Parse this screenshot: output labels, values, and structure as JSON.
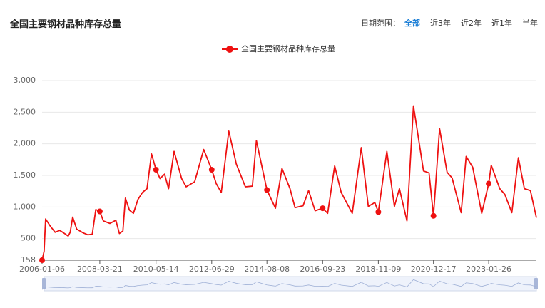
{
  "chart_data": {
    "type": "line",
    "title": "全国主要钢材品种库存总量",
    "x": [
      "2006-01-06",
      "2006-02-03",
      "2006-02-24",
      "2006-05-05",
      "2006-07-07",
      "2006-09-08",
      "2006-11-03",
      "2007-01-05",
      "2007-02-02",
      "2007-03-09",
      "2007-05-04",
      "2007-08-03",
      "2007-10-05",
      "2007-12-07",
      "2008-01-25",
      "2008-03-21",
      "2008-05-09",
      "2008-08-08",
      "2008-10-31",
      "2008-12-19",
      "2009-02-06",
      "2009-03-13",
      "2009-05-08",
      "2009-07-03",
      "2009-09-04",
      "2009-11-06",
      "2010-01-08",
      "2010-03-12",
      "2010-05-14",
      "2010-07-09",
      "2010-09-10",
      "2010-11-05",
      "2011-01-21",
      "2011-05-06",
      "2011-07-08",
      "2011-11-04",
      "2012-03-09",
      "2012-06-29",
      "2012-08-31",
      "2012-11-09",
      "2013-02-22",
      "2013-06-07",
      "2013-10-11",
      "2014-01-17",
      "2014-03-14",
      "2014-08-08",
      "2014-12-05",
      "2015-03-06",
      "2015-06-26",
      "2015-09-04",
      "2015-12-25",
      "2016-03-11",
      "2016-06-10",
      "2016-09-23",
      "2016-12-02",
      "2017-03-10",
      "2017-06-09",
      "2017-11-10",
      "2018-03-16",
      "2018-06-22",
      "2018-09-21",
      "2018-11-09",
      "2019-03-08",
      "2019-06-21",
      "2019-08-30",
      "2019-12-13",
      "2020-03-13",
      "2020-07-31",
      "2020-10-16",
      "2020-12-17",
      "2021-03-12",
      "2021-06-25",
      "2021-09-03",
      "2022-01-07",
      "2022-03-18",
      "2022-06-17",
      "2022-10-21",
      "2023-01-26",
      "2023-03-03",
      "2023-06-30",
      "2023-09-08",
      "2023-12-15",
      "2024-03-15",
      "2024-06-07",
      "2024-08-30",
      "2024-11-22"
    ],
    "series": [
      {
        "name": "全国主要钢材品种库存总量",
        "color": "#ee1111",
        "values": [
          158,
          300,
          810,
          690,
          600,
          630,
          590,
          540,
          600,
          840,
          650,
          590,
          560,
          570,
          960,
          930,
          780,
          740,
          790,
          580,
          620,
          1140,
          950,
          900,
          1120,
          1230,
          1290,
          1840,
          1590,
          1450,
          1520,
          1290,
          1880,
          1450,
          1320,
          1400,
          1910,
          1590,
          1370,
          1230,
          2200,
          1680,
          1320,
          1330,
          2050,
          1270,
          980,
          1610,
          1290,
          990,
          1020,
          1260,
          940,
          980,
          900,
          1650,
          1230,
          900,
          1940,
          1010,
          1070,
          920,
          1880,
          1010,
          1290,
          780,
          2600,
          1570,
          1540,
          860,
          2240,
          1550,
          1460,
          910,
          1800,
          1630,
          900,
          1370,
          1660,
          1290,
          1200,
          910,
          1780,
          1290,
          1260,
          830
        ]
      }
    ],
    "xlim": [
      "2006-01-06",
      "2024-11-22"
    ],
    "xticks": [
      "2006-01-06",
      "2008-03-21",
      "2010-05-14",
      "2012-06-29",
      "2014-08-08",
      "2016-09-23",
      "2018-11-09",
      "2020-12-17",
      "2023-01-26"
    ],
    "ylim": [
      158,
      3000
    ],
    "yticks": [
      158,
      500,
      {
        "value": 1000,
        "label": "1,000"
      },
      {
        "value": 1500,
        "label": "1,500"
      },
      {
        "value": 2000,
        "label": "2,000"
      },
      {
        "value": 2500,
        "label": "2,500"
      },
      {
        "value": 3000,
        "label": "3,000"
      }
    ],
    "grid": true
  },
  "controls": {
    "label": "日期范围：",
    "options": [
      "全部",
      "近3年",
      "近2年",
      "近1年",
      "半年"
    ],
    "active": 0
  }
}
